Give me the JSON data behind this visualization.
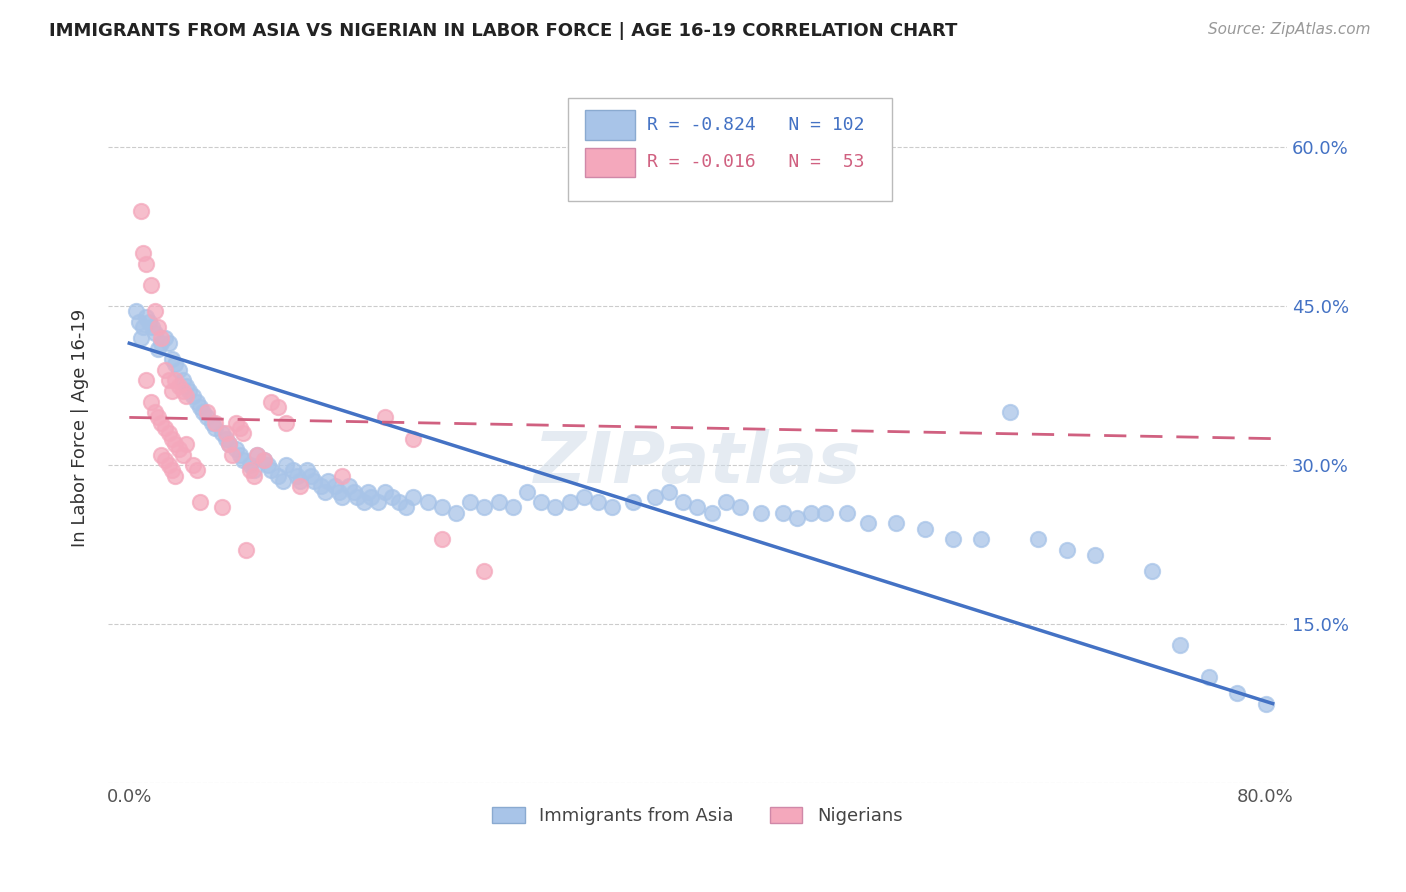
{
  "title": "IMMIGRANTS FROM ASIA VS NIGERIAN IN LABOR FORCE | AGE 16-19 CORRELATION CHART",
  "source_text": "Source: ZipAtlas.com",
  "ylabel": "In Labor Force | Age 16-19",
  "x_ticks": [
    0.0,
    0.1,
    0.2,
    0.3,
    0.4,
    0.5,
    0.6,
    0.7,
    0.8
  ],
  "x_tick_labels": [
    "0.0%",
    "",
    "",
    "",
    "",
    "",
    "",
    "",
    "80.0%"
  ],
  "y_ticks": [
    0.0,
    0.15,
    0.3,
    0.45,
    0.6
  ],
  "y_tick_labels_right": [
    "",
    "15.0%",
    "30.0%",
    "45.0%",
    "60.0%"
  ],
  "xlim": [
    -0.015,
    0.815
  ],
  "ylim": [
    0.03,
    0.67
  ],
  "legend_r_asia": "-0.824",
  "legend_n_asia": "102",
  "legend_r_nigerian": "-0.016",
  "legend_n_nigerian": " 53",
  "watermark": "ZIPatlas",
  "asia_color": "#a8c4e8",
  "nigeria_color": "#f4a8bc",
  "asia_line_color": "#4472c4",
  "nigeria_line_color": "#d06080",
  "asia_scatter": [
    [
      0.005,
      0.445
    ],
    [
      0.007,
      0.435
    ],
    [
      0.01,
      0.43
    ],
    [
      0.012,
      0.44
    ],
    [
      0.014,
      0.435
    ],
    [
      0.016,
      0.43
    ],
    [
      0.018,
      0.425
    ],
    [
      0.008,
      0.42
    ],
    [
      0.022,
      0.415
    ],
    [
      0.02,
      0.41
    ],
    [
      0.025,
      0.42
    ],
    [
      0.028,
      0.415
    ],
    [
      0.03,
      0.4
    ],
    [
      0.032,
      0.395
    ],
    [
      0.035,
      0.39
    ],
    [
      0.038,
      0.38
    ],
    [
      0.04,
      0.375
    ],
    [
      0.042,
      0.37
    ],
    [
      0.045,
      0.365
    ],
    [
      0.048,
      0.36
    ],
    [
      0.05,
      0.355
    ],
    [
      0.052,
      0.35
    ],
    [
      0.055,
      0.345
    ],
    [
      0.058,
      0.34
    ],
    [
      0.06,
      0.335
    ],
    [
      0.065,
      0.33
    ],
    [
      0.068,
      0.325
    ],
    [
      0.07,
      0.32
    ],
    [
      0.075,
      0.315
    ],
    [
      0.078,
      0.31
    ],
    [
      0.08,
      0.305
    ],
    [
      0.085,
      0.3
    ],
    [
      0.088,
      0.295
    ],
    [
      0.09,
      0.31
    ],
    [
      0.095,
      0.305
    ],
    [
      0.098,
      0.3
    ],
    [
      0.1,
      0.295
    ],
    [
      0.105,
      0.29
    ],
    [
      0.108,
      0.285
    ],
    [
      0.11,
      0.3
    ],
    [
      0.115,
      0.295
    ],
    [
      0.118,
      0.29
    ],
    [
      0.12,
      0.285
    ],
    [
      0.125,
      0.295
    ],
    [
      0.128,
      0.29
    ],
    [
      0.13,
      0.285
    ],
    [
      0.135,
      0.28
    ],
    [
      0.138,
      0.275
    ],
    [
      0.14,
      0.285
    ],
    [
      0.145,
      0.28
    ],
    [
      0.148,
      0.275
    ],
    [
      0.15,
      0.27
    ],
    [
      0.155,
      0.28
    ],
    [
      0.158,
      0.275
    ],
    [
      0.16,
      0.27
    ],
    [
      0.165,
      0.265
    ],
    [
      0.168,
      0.275
    ],
    [
      0.17,
      0.27
    ],
    [
      0.175,
      0.265
    ],
    [
      0.18,
      0.275
    ],
    [
      0.185,
      0.27
    ],
    [
      0.19,
      0.265
    ],
    [
      0.195,
      0.26
    ],
    [
      0.2,
      0.27
    ],
    [
      0.21,
      0.265
    ],
    [
      0.22,
      0.26
    ],
    [
      0.23,
      0.255
    ],
    [
      0.24,
      0.265
    ],
    [
      0.25,
      0.26
    ],
    [
      0.26,
      0.265
    ],
    [
      0.27,
      0.26
    ],
    [
      0.28,
      0.275
    ],
    [
      0.29,
      0.265
    ],
    [
      0.3,
      0.26
    ],
    [
      0.31,
      0.265
    ],
    [
      0.32,
      0.27
    ],
    [
      0.33,
      0.265
    ],
    [
      0.34,
      0.26
    ],
    [
      0.355,
      0.265
    ],
    [
      0.37,
      0.27
    ],
    [
      0.38,
      0.275
    ],
    [
      0.39,
      0.265
    ],
    [
      0.4,
      0.26
    ],
    [
      0.41,
      0.255
    ],
    [
      0.42,
      0.265
    ],
    [
      0.43,
      0.26
    ],
    [
      0.445,
      0.255
    ],
    [
      0.46,
      0.255
    ],
    [
      0.47,
      0.25
    ],
    [
      0.48,
      0.255
    ],
    [
      0.49,
      0.255
    ],
    [
      0.505,
      0.255
    ],
    [
      0.52,
      0.245
    ],
    [
      0.54,
      0.245
    ],
    [
      0.56,
      0.24
    ],
    [
      0.58,
      0.23
    ],
    [
      0.6,
      0.23
    ],
    [
      0.62,
      0.35
    ],
    [
      0.64,
      0.23
    ],
    [
      0.66,
      0.22
    ],
    [
      0.68,
      0.215
    ],
    [
      0.72,
      0.2
    ],
    [
      0.74,
      0.13
    ],
    [
      0.76,
      0.1
    ],
    [
      0.78,
      0.085
    ],
    [
      0.8,
      0.075
    ]
  ],
  "nigeria_scatter": [
    [
      0.008,
      0.54
    ],
    [
      0.01,
      0.5
    ],
    [
      0.012,
      0.49
    ],
    [
      0.015,
      0.47
    ],
    [
      0.018,
      0.445
    ],
    [
      0.02,
      0.43
    ],
    [
      0.022,
      0.42
    ],
    [
      0.025,
      0.39
    ],
    [
      0.028,
      0.38
    ],
    [
      0.03,
      0.37
    ],
    [
      0.032,
      0.38
    ],
    [
      0.035,
      0.375
    ],
    [
      0.038,
      0.37
    ],
    [
      0.04,
      0.365
    ],
    [
      0.012,
      0.38
    ],
    [
      0.015,
      0.36
    ],
    [
      0.018,
      0.35
    ],
    [
      0.02,
      0.345
    ],
    [
      0.022,
      0.34
    ],
    [
      0.025,
      0.335
    ],
    [
      0.028,
      0.33
    ],
    [
      0.03,
      0.325
    ],
    [
      0.032,
      0.32
    ],
    [
      0.035,
      0.315
    ],
    [
      0.038,
      0.31
    ],
    [
      0.04,
      0.32
    ],
    [
      0.022,
      0.31
    ],
    [
      0.025,
      0.305
    ],
    [
      0.028,
      0.3
    ],
    [
      0.03,
      0.295
    ],
    [
      0.032,
      0.29
    ],
    [
      0.045,
      0.3
    ],
    [
      0.048,
      0.295
    ],
    [
      0.05,
      0.265
    ],
    [
      0.055,
      0.35
    ],
    [
      0.06,
      0.34
    ],
    [
      0.065,
      0.26
    ],
    [
      0.068,
      0.33
    ],
    [
      0.07,
      0.32
    ],
    [
      0.072,
      0.31
    ],
    [
      0.075,
      0.34
    ],
    [
      0.078,
      0.335
    ],
    [
      0.08,
      0.33
    ],
    [
      0.082,
      0.22
    ],
    [
      0.085,
      0.295
    ],
    [
      0.088,
      0.29
    ],
    [
      0.09,
      0.31
    ],
    [
      0.095,
      0.305
    ],
    [
      0.1,
      0.36
    ],
    [
      0.105,
      0.355
    ],
    [
      0.11,
      0.34
    ],
    [
      0.12,
      0.28
    ],
    [
      0.15,
      0.29
    ],
    [
      0.18,
      0.345
    ],
    [
      0.2,
      0.325
    ],
    [
      0.22,
      0.23
    ],
    [
      0.25,
      0.2
    ]
  ],
  "asia_trend": {
    "x_start": 0.0,
    "y_start": 0.415,
    "x_end": 0.805,
    "y_end": 0.075
  },
  "nigeria_trend": {
    "x_start": 0.0,
    "y_start": 0.345,
    "x_end": 0.805,
    "y_end": 0.325
  }
}
